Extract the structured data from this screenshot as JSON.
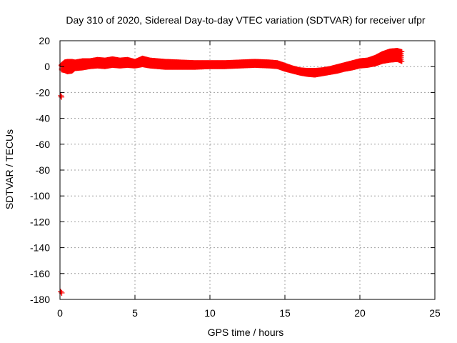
{
  "chart_data": {
    "type": "scatter",
    "title": "Day 310 of 2020, Sidereal Day-to-day VTEC variation (SDTVAR) for receiver ufpr",
    "xlabel": "GPS time / hours",
    "ylabel": "SDTVAR / TECUs",
    "xlim": [
      0,
      25
    ],
    "ylim": [
      -180,
      20
    ],
    "xticks": [
      0,
      5,
      10,
      15,
      20,
      25
    ],
    "yticks": [
      20,
      0,
      -20,
      -40,
      -60,
      -80,
      -100,
      -120,
      -140,
      -160,
      -180
    ],
    "grid": true,
    "marker": "plus",
    "marker_color": "#ff0000",
    "band": [
      [
        0.1,
        1.5,
        -2.5
      ],
      [
        0.3,
        3.5,
        -3.0
      ],
      [
        0.5,
        4.0,
        -4.0
      ],
      [
        0.8,
        4.0,
        -3.5
      ],
      [
        1.0,
        3.5,
        -1.5
      ],
      [
        1.5,
        4.5,
        -1.0
      ],
      [
        2.0,
        4.5,
        0.0
      ],
      [
        2.5,
        5.5,
        0.5
      ],
      [
        3.0,
        5.0,
        0.0
      ],
      [
        3.5,
        6.0,
        1.0
      ],
      [
        4.0,
        5.0,
        0.5
      ],
      [
        4.5,
        5.5,
        1.0
      ],
      [
        5.0,
        4.0,
        0.5
      ],
      [
        5.5,
        6.5,
        1.5
      ],
      [
        6.0,
        5.0,
        0.5
      ],
      [
        6.5,
        4.5,
        0.0
      ],
      [
        7.0,
        4.0,
        -0.5
      ],
      [
        8.0,
        3.5,
        -0.5
      ],
      [
        9.0,
        3.0,
        -0.5
      ],
      [
        10.0,
        3.0,
        0.0
      ],
      [
        11.0,
        3.0,
        0.0
      ],
      [
        12.0,
        3.5,
        0.5
      ],
      [
        13.0,
        4.0,
        1.0
      ],
      [
        14.0,
        3.5,
        0.5
      ],
      [
        14.5,
        3.0,
        0.0
      ],
      [
        15.0,
        1.0,
        -2.0
      ],
      [
        15.5,
        -1.0,
        -3.5
      ],
      [
        16.0,
        -2.5,
        -5.0
      ],
      [
        16.5,
        -3.0,
        -6.0
      ],
      [
        17.0,
        -3.0,
        -6.5
      ],
      [
        17.5,
        -2.5,
        -5.5
      ],
      [
        18.0,
        -1.5,
        -4.5
      ],
      [
        18.5,
        0.0,
        -3.5
      ],
      [
        19.0,
        1.5,
        -2.0
      ],
      [
        19.5,
        3.0,
        -1.0
      ],
      [
        20.0,
        4.5,
        0.5
      ],
      [
        20.5,
        5.0,
        1.0
      ],
      [
        21.0,
        7.0,
        2.0
      ],
      [
        21.5,
        10.0,
        4.0
      ],
      [
        22.0,
        12.0,
        5.0
      ],
      [
        22.5,
        12.5,
        5.5
      ],
      [
        22.8,
        11.5,
        4.0
      ]
    ],
    "outliers": [
      [
        0.1,
        1.0
      ],
      [
        0.05,
        -22.5
      ],
      [
        0.1,
        -23.5
      ],
      [
        0.05,
        -174.0
      ],
      [
        0.12,
        -175.0
      ]
    ]
  }
}
